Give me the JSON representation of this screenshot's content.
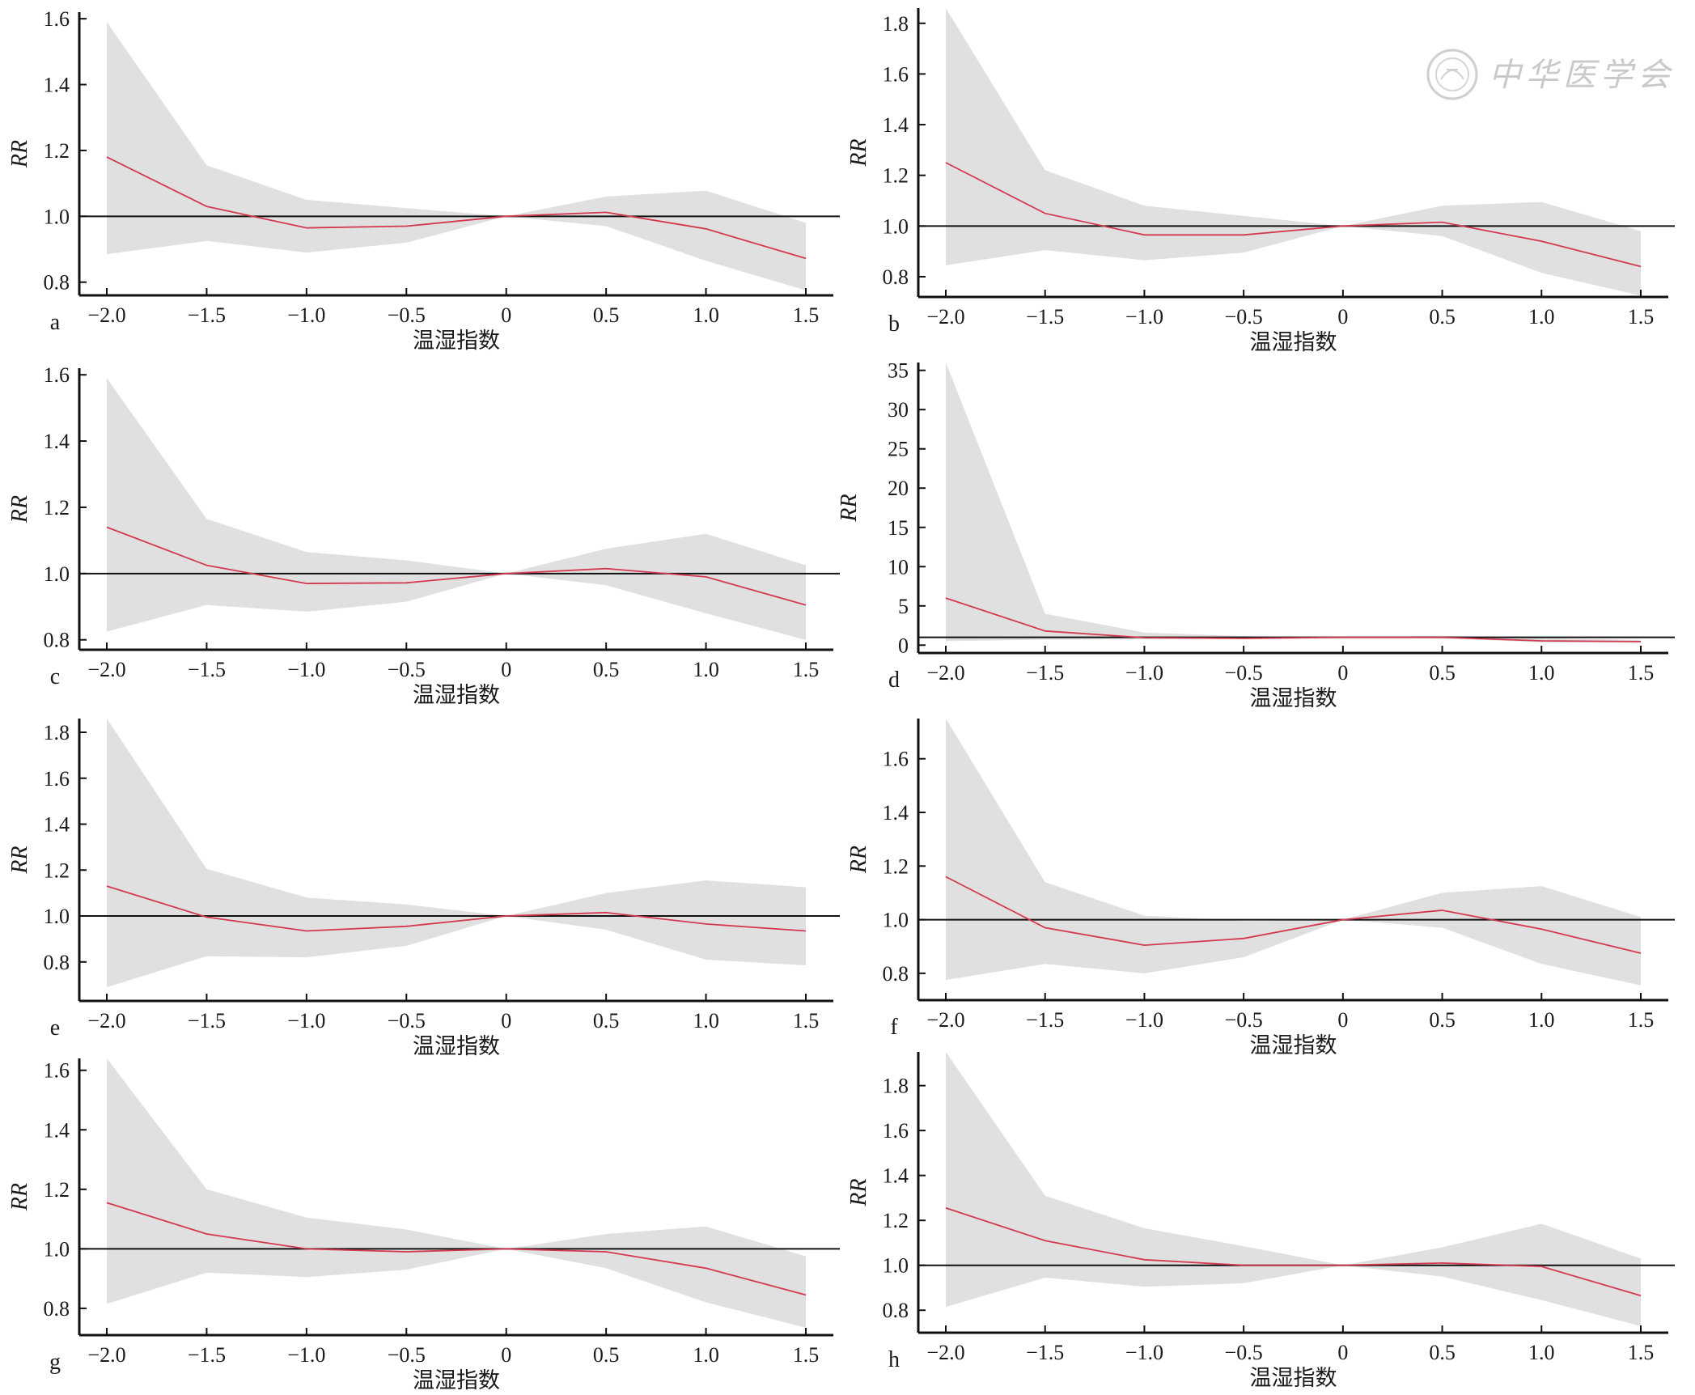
{
  "x_label": "温湿指数",
  "y_label": "RR",
  "watermark": {
    "text": "中华医学会"
  },
  "colors": {
    "band": "#e0e0e0",
    "line": "#d43a4f",
    "ref": "#111111",
    "axis": "#111111"
  },
  "chart_data": [
    {
      "id": "a",
      "type": "line",
      "x": [
        -2.0,
        -1.5,
        -1.0,
        -0.5,
        0,
        0.5,
        1.0,
        1.5
      ],
      "x_ticks": [
        "−2.0",
        "−1.5",
        "−1.0",
        "−0.5",
        "0",
        "0.5",
        "1.0",
        "1.5"
      ],
      "y_ticks": [
        "0.8",
        "1.0",
        "1.2",
        "1.4",
        "1.6"
      ],
      "y_tick_values": [
        0.8,
        1.0,
        1.2,
        1.4,
        1.6
      ],
      "ylim": [
        0.76,
        1.62
      ],
      "reference": 1.0,
      "rr": [
        1.18,
        1.03,
        0.965,
        0.97,
        1.0,
        1.012,
        0.962,
        0.872
      ],
      "lower": [
        0.885,
        0.925,
        0.89,
        0.92,
        1.0,
        0.97,
        0.865,
        0.775
      ],
      "upper": [
        1.59,
        1.155,
        1.05,
        1.025,
        1.0,
        1.06,
        1.078,
        0.98
      ]
    },
    {
      "id": "b",
      "type": "line",
      "x": [
        -2.0,
        -1.5,
        -1.0,
        -0.5,
        0,
        0.5,
        1.0,
        1.5
      ],
      "x_ticks": [
        "−2.0",
        "−1.5",
        "−1.0",
        "−0.5",
        "0",
        "0.5",
        "1.0",
        "1.5"
      ],
      "y_ticks": [
        "0.8",
        "1.0",
        "1.2",
        "1.4",
        "1.6",
        "1.8"
      ],
      "y_tick_values": [
        0.8,
        1.0,
        1.2,
        1.4,
        1.6,
        1.8
      ],
      "ylim": [
        0.72,
        1.86
      ],
      "reference": 1.0,
      "rr": [
        1.25,
        1.05,
        0.965,
        0.965,
        1.0,
        1.015,
        0.94,
        0.84
      ],
      "lower": [
        0.845,
        0.905,
        0.865,
        0.895,
        1.0,
        0.96,
        0.815,
        0.725
      ],
      "upper": [
        1.86,
        1.22,
        1.08,
        1.04,
        1.0,
        1.08,
        1.095,
        0.98
      ]
    },
    {
      "id": "c",
      "type": "line",
      "x": [
        -2.0,
        -1.5,
        -1.0,
        -0.5,
        0,
        0.5,
        1.0,
        1.5
      ],
      "x_ticks": [
        "−2.0",
        "−1.5",
        "−1.0",
        "−0.5",
        "0",
        "0.5",
        "1.0",
        "1.5"
      ],
      "y_ticks": [
        "0.8",
        "1.0",
        "1.2",
        "1.4",
        "1.6"
      ],
      "y_tick_values": [
        0.8,
        1.0,
        1.2,
        1.4,
        1.6
      ],
      "ylim": [
        0.77,
        1.62
      ],
      "reference": 1.0,
      "rr": [
        1.14,
        1.025,
        0.97,
        0.972,
        1.0,
        1.015,
        0.99,
        0.905
      ],
      "lower": [
        0.825,
        0.905,
        0.885,
        0.915,
        1.0,
        0.965,
        0.88,
        0.8
      ],
      "upper": [
        1.59,
        1.165,
        1.065,
        1.04,
        1.0,
        1.075,
        1.12,
        1.025
      ]
    },
    {
      "id": "d",
      "type": "line",
      "x": [
        -2.0,
        -1.5,
        -1.0,
        -0.5,
        0,
        0.5,
        1.0,
        1.5
      ],
      "x_ticks": [
        "−2.0",
        "−1.5",
        "−1.0",
        "−0.5",
        "0",
        "0.5",
        "1.0",
        "1.5"
      ],
      "y_ticks": [
        "0",
        "5",
        "10",
        "15",
        "20",
        "25",
        "30",
        "35"
      ],
      "y_tick_values": [
        0,
        5,
        10,
        15,
        20,
        25,
        30,
        35
      ],
      "ylim": [
        -1.0,
        36.0
      ],
      "reference": 1.0,
      "rr": [
        6.0,
        1.8,
        0.95,
        0.85,
        1.0,
        1.0,
        0.55,
        0.45
      ],
      "lower": [
        0.5,
        0.7,
        0.75,
        0.8,
        1.0,
        0.85,
        0.35,
        0.3
      ],
      "upper": [
        36.0,
        4.0,
        1.6,
        1.15,
        1.0,
        1.2,
        0.9,
        0.65
      ]
    },
    {
      "id": "e",
      "type": "line",
      "x": [
        -2.0,
        -1.5,
        -1.0,
        -0.5,
        0,
        0.5,
        1.0,
        1.5
      ],
      "x_ticks": [
        "−2.0",
        "−1.5",
        "−1.0",
        "−0.5",
        "0",
        "0.5",
        "1.0",
        "1.5"
      ],
      "y_ticks": [
        "0.8",
        "1.0",
        "1.2",
        "1.4",
        "1.6",
        "1.8"
      ],
      "y_tick_values": [
        0.8,
        1.0,
        1.2,
        1.4,
        1.6,
        1.8
      ],
      "ylim": [
        0.63,
        1.86
      ],
      "reference": 1.0,
      "rr": [
        1.13,
        0.995,
        0.935,
        0.955,
        1.0,
        1.015,
        0.965,
        0.935
      ],
      "lower": [
        0.69,
        0.825,
        0.82,
        0.87,
        1.0,
        0.94,
        0.81,
        0.785
      ],
      "upper": [
        1.86,
        1.205,
        1.08,
        1.05,
        1.0,
        1.1,
        1.155,
        1.125
      ]
    },
    {
      "id": "f",
      "type": "line",
      "x": [
        -2.0,
        -1.5,
        -1.0,
        -0.5,
        0,
        0.5,
        1.0,
        1.5
      ],
      "x_ticks": [
        "−2.0",
        "−1.5",
        "−1.0",
        "−0.5",
        "0",
        "0.5",
        "1.0",
        "1.5"
      ],
      "y_ticks": [
        "0.8",
        "1.0",
        "1.2",
        "1.4",
        "1.6"
      ],
      "y_tick_values": [
        0.8,
        1.0,
        1.2,
        1.4,
        1.6
      ],
      "ylim": [
        0.7,
        1.75
      ],
      "reference": 1.0,
      "rr": [
        1.16,
        0.97,
        0.905,
        0.93,
        1.0,
        1.035,
        0.965,
        0.875
      ],
      "lower": [
        0.775,
        0.835,
        0.8,
        0.86,
        1.0,
        0.97,
        0.835,
        0.755
      ],
      "upper": [
        1.75,
        1.14,
        1.015,
        0.995,
        1.0,
        1.1,
        1.125,
        1.01
      ]
    },
    {
      "id": "g",
      "type": "line",
      "x": [
        -2.0,
        -1.5,
        -1.0,
        -0.5,
        0,
        0.5,
        1.0,
        1.5
      ],
      "x_ticks": [
        "−2.0",
        "−1.5",
        "−1.0",
        "−0.5",
        "0",
        "0.5",
        "1.0",
        "1.5"
      ],
      "y_ticks": [
        "0.8",
        "1.0",
        "1.2",
        "1.4",
        "1.6"
      ],
      "y_tick_values": [
        0.8,
        1.0,
        1.2,
        1.4,
        1.6
      ],
      "ylim": [
        0.71,
        1.64
      ],
      "reference": 1.0,
      "rr": [
        1.155,
        1.05,
        1.0,
        0.99,
        1.0,
        0.99,
        0.935,
        0.845
      ],
      "lower": [
        0.815,
        0.92,
        0.905,
        0.93,
        1.0,
        0.935,
        0.82,
        0.735
      ],
      "upper": [
        1.64,
        1.2,
        1.105,
        1.065,
        1.0,
        1.05,
        1.075,
        0.975
      ]
    },
    {
      "id": "h",
      "type": "line",
      "x": [
        -2.0,
        -1.5,
        -1.0,
        -0.5,
        0,
        0.5,
        1.0,
        1.5
      ],
      "x_ticks": [
        "−2.0",
        "−1.5",
        "−1.0",
        "−0.5",
        "0",
        "0.5",
        "1.0",
        "1.5"
      ],
      "y_ticks": [
        "0.8",
        "1.0",
        "1.2",
        "1.4",
        "1.6",
        "1.8"
      ],
      "y_tick_values": [
        0.8,
        1.0,
        1.2,
        1.4,
        1.6,
        1.8
      ],
      "ylim": [
        0.7,
        1.95
      ],
      "reference": 1.0,
      "rr": [
        1.255,
        1.11,
        1.025,
        1.0,
        1.0,
        1.01,
        0.995,
        0.865
      ],
      "lower": [
        0.815,
        0.945,
        0.905,
        0.92,
        1.0,
        0.95,
        0.845,
        0.73
      ],
      "upper": [
        1.95,
        1.31,
        1.165,
        1.085,
        1.0,
        1.08,
        1.185,
        1.03
      ]
    }
  ]
}
